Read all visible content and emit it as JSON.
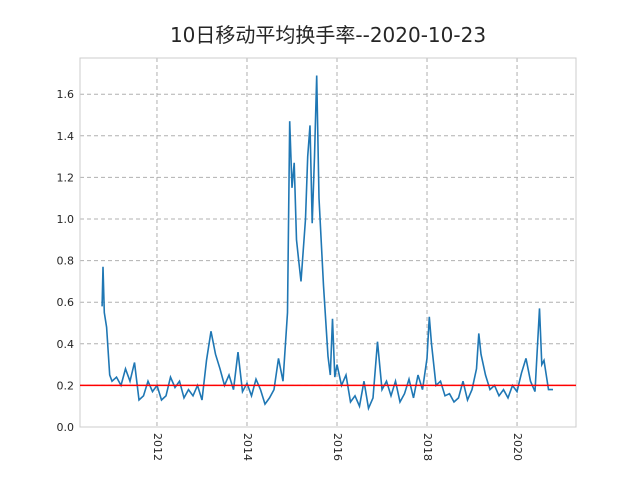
{
  "chart_data": {
    "type": "line",
    "title": "10日移动平均换手率--2020-10-23",
    "x": [
      2010.78,
      2010.8,
      2010.83,
      2010.88,
      2010.95,
      2011.0,
      2011.1,
      2011.2,
      2011.3,
      2011.4,
      2011.5,
      2011.6,
      2011.7,
      2011.8,
      2011.9,
      2012.0,
      2012.1,
      2012.2,
      2012.3,
      2012.4,
      2012.5,
      2012.6,
      2012.7,
      2012.8,
      2012.9,
      2013.0,
      2013.1,
      2013.2,
      2013.3,
      2013.4,
      2013.5,
      2013.6,
      2013.7,
      2013.8,
      2013.9,
      2014.0,
      2014.1,
      2014.2,
      2014.3,
      2014.4,
      2014.5,
      2014.6,
      2014.7,
      2014.8,
      2014.9,
      2014.95,
      2015.0,
      2015.05,
      2015.1,
      2015.15,
      2015.2,
      2015.3,
      2015.35,
      2015.4,
      2015.45,
      2015.5,
      2015.55,
      2015.6,
      2015.7,
      2015.8,
      2015.85,
      2015.9,
      2015.95,
      2016.0,
      2016.1,
      2016.2,
      2016.3,
      2016.4,
      2016.5,
      2016.6,
      2016.7,
      2016.8,
      2016.9,
      2017.0,
      2017.1,
      2017.2,
      2017.3,
      2017.4,
      2017.5,
      2017.6,
      2017.7,
      2017.8,
      2017.9,
      2018.0,
      2018.05,
      2018.1,
      2018.2,
      2018.3,
      2018.4,
      2018.5,
      2018.6,
      2018.7,
      2018.8,
      2018.9,
      2019.0,
      2019.1,
      2019.15,
      2019.2,
      2019.3,
      2019.4,
      2019.5,
      2019.6,
      2019.7,
      2019.8,
      2019.9,
      2020.0,
      2020.1,
      2020.2,
      2020.3,
      2020.4,
      2020.5,
      2020.55,
      2020.6,
      2020.7,
      2020.8
    ],
    "values": [
      0.58,
      0.77,
      0.55,
      0.48,
      0.25,
      0.22,
      0.24,
      0.2,
      0.28,
      0.22,
      0.31,
      0.13,
      0.15,
      0.22,
      0.17,
      0.2,
      0.13,
      0.15,
      0.24,
      0.19,
      0.22,
      0.14,
      0.18,
      0.15,
      0.2,
      0.13,
      0.32,
      0.46,
      0.35,
      0.28,
      0.2,
      0.25,
      0.18,
      0.36,
      0.17,
      0.21,
      0.15,
      0.23,
      0.18,
      0.11,
      0.14,
      0.18,
      0.33,
      0.22,
      0.55,
      1.47,
      1.15,
      1.27,
      0.9,
      0.8,
      0.7,
      1.0,
      1.3,
      1.45,
      0.98,
      1.3,
      1.69,
      1.1,
      0.68,
      0.34,
      0.25,
      0.52,
      0.24,
      0.3,
      0.2,
      0.25,
      0.12,
      0.15,
      0.1,
      0.22,
      0.09,
      0.14,
      0.41,
      0.18,
      0.22,
      0.15,
      0.22,
      0.12,
      0.16,
      0.23,
      0.14,
      0.25,
      0.18,
      0.33,
      0.53,
      0.4,
      0.2,
      0.22,
      0.15,
      0.16,
      0.12,
      0.14,
      0.22,
      0.13,
      0.18,
      0.28,
      0.45,
      0.35,
      0.25,
      0.18,
      0.2,
      0.15,
      0.18,
      0.14,
      0.2,
      0.17,
      0.26,
      0.33,
      0.22,
      0.17,
      0.57,
      0.3,
      0.32,
      0.18,
      0.18
    ],
    "color": "#1f77b4",
    "hline": {
      "value": 0.2,
      "color": "#ff0000"
    },
    "xlim": [
      2010.29,
      2021.31
    ],
    "xticks": [
      2012,
      2014,
      2016,
      2018,
      2020
    ],
    "ylim": [
      0,
      1.774
    ],
    "yticks": [
      {
        "value": 0,
        "label": "0.0"
      },
      0.2,
      0.4,
      0.6,
      0.8,
      {
        "value": 1,
        "label": "1.0"
      },
      1.2,
      1.4,
      1.6
    ],
    "grid": true
  }
}
